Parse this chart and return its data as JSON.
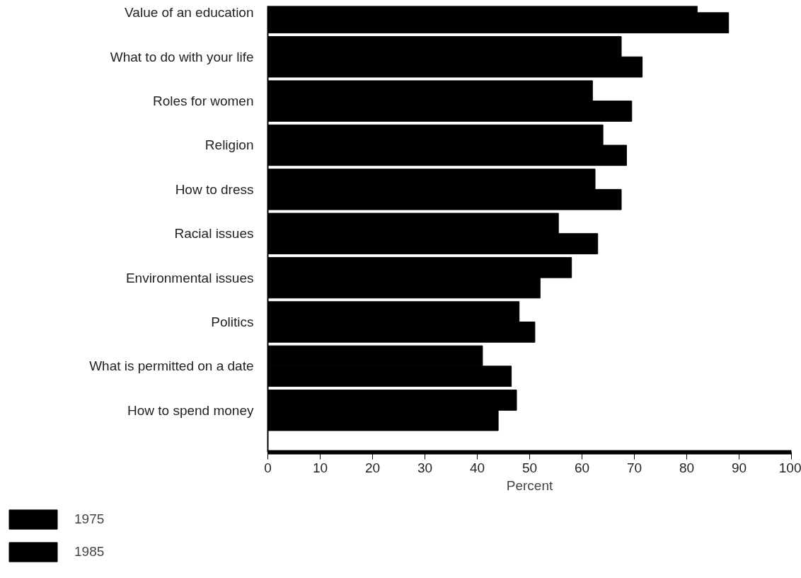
{
  "chart_data": {
    "type": "bar",
    "orientation": "horizontal",
    "xlabel": "Percent",
    "categories": [
      "Value of an education",
      "What to do with your life",
      "Roles for women",
      "Religion",
      "How to dress",
      "Racial issues",
      "Environmental issues",
      "Politics",
      "What is permitted on a date",
      "How to spend money"
    ],
    "series": [
      {
        "name": "1975",
        "color": "#000000",
        "values": [
          82,
          67.5,
          62,
          64,
          62.5,
          55.5,
          58,
          48,
          41,
          47.5
        ]
      },
      {
        "name": "1985",
        "color": "#000000",
        "values": [
          88,
          71.5,
          69.5,
          68.5,
          67.5,
          63,
          52,
          51,
          46.5,
          44
        ]
      }
    ],
    "xlim": [
      0,
      100
    ],
    "xticks": [
      0,
      10,
      20,
      30,
      40,
      50,
      60,
      70,
      80,
      90,
      100
    ],
    "grid": false,
    "legend": "bottom left"
  }
}
